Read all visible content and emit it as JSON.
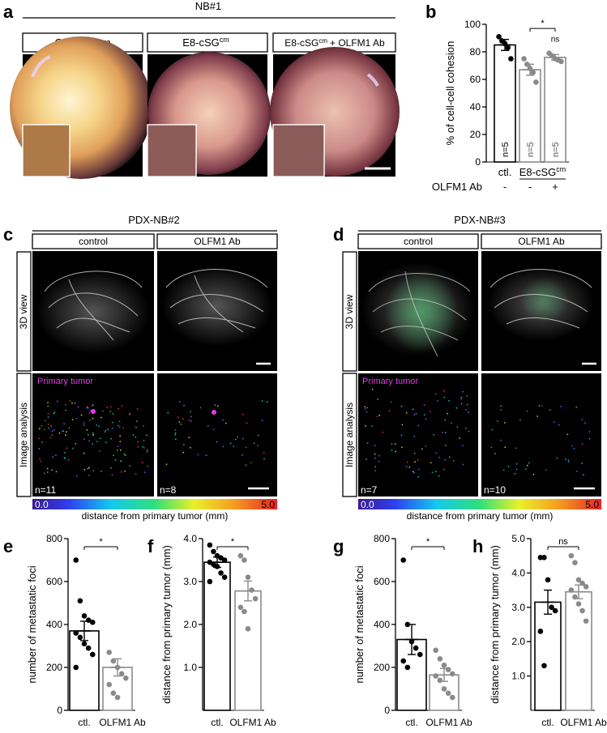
{
  "panel_letters": {
    "a": "a",
    "b": "b",
    "c": "c",
    "d": "d",
    "e": "e",
    "f": "f",
    "g": "g",
    "h": "h"
  },
  "panel_a": {
    "group_label": "NB#1",
    "columns": [
      "Ctl. medium",
      "E8-cSG",
      "E8-cSG"
    ],
    "superscript": "cm",
    "col3_suffix": "+ OLFM1 Ab"
  },
  "panel_c": {
    "title": "PDX-NB#2",
    "cols": [
      "control",
      "OLFM1 Ab"
    ],
    "rows": [
      "3D view",
      "Image analysis"
    ],
    "primary_label": "Primary tumor",
    "n_labels": [
      "n=11",
      "n=8"
    ]
  },
  "panel_d": {
    "title": "PDX-NB#3",
    "cols": [
      "control",
      "OLFM1 Ab"
    ],
    "rows": [
      "3D view",
      "Image analysis"
    ],
    "primary_label": "Primary tumor",
    "n_labels": [
      "n=7",
      "n=10"
    ]
  },
  "colorbar": {
    "min": "0.0",
    "max": "5.0",
    "label": "distance from primary tumor (mm)"
  },
  "colors": {
    "black": "#000000",
    "gray": "#8a8a8a",
    "magenta": "#e23ce2"
  },
  "chart_data": [
    {
      "id": "b",
      "type": "bar",
      "ylabel": "% of cell-cell cohesion",
      "ylim": [
        0,
        100
      ],
      "yticks": [
        "0",
        "20",
        "40",
        "60",
        "80",
        "100"
      ],
      "categories": [
        "ctl.",
        "E8-cSG",
        "E8-cSG"
      ],
      "superscript": "cm",
      "means": [
        85,
        67,
        76
      ],
      "errors": [
        4,
        4,
        2
      ],
      "points": [
        [
          91,
          88,
          86,
          83,
          75
        ],
        [
          75,
          71,
          68,
          65,
          58
        ],
        [
          79,
          77,
          75,
          74,
          73
        ]
      ],
      "n_labels": [
        "n=5",
        "n=5",
        "n=5"
      ],
      "sig_labels": [
        "",
        "",
        "ns"
      ],
      "bracket": {
        "label": "*"
      },
      "olfm_row": {
        "label": "OLFM1 Ab",
        "signs": [
          "-",
          "-",
          "+"
        ]
      }
    },
    {
      "id": "e",
      "type": "bar",
      "ylabel": "number of metastatic foci",
      "ylim": [
        0,
        800
      ],
      "yticks": [
        "0",
        "200",
        "400",
        "600",
        "800"
      ],
      "categories": [
        "ctl.",
        "OLFM1 Ab"
      ],
      "means": [
        370,
        200
      ],
      "errors": [
        45,
        40
      ],
      "points": [
        [
          700,
          510,
          440,
          420,
          410,
          360,
          340,
          310,
          290,
          260,
          200
        ],
        [
          270,
          230,
          200,
          170,
          150,
          120,
          80,
          60
        ]
      ],
      "bracket": {
        "label": "*"
      }
    },
    {
      "id": "f",
      "type": "bar",
      "ylabel": "distance from primary tumor (mm)",
      "ylim": [
        0,
        4.0
      ],
      "yticks": [
        "1.0",
        "2.0",
        "3.0",
        "4.0"
      ],
      "categories": [
        "ctl.",
        "OLFM1 Ab"
      ],
      "means": [
        3.45,
        2.78
      ],
      "errors": [
        0.12,
        0.23
      ],
      "points": [
        [
          3.85,
          3.7,
          3.6,
          3.55,
          3.5,
          3.45,
          3.4,
          3.35,
          3.2,
          3.1,
          3.0
        ],
        [
          3.6,
          3.5,
          3.1,
          2.8,
          2.6,
          2.4,
          2.3,
          1.9
        ]
      ],
      "bracket": {
        "label": "*"
      }
    },
    {
      "id": "g",
      "type": "bar",
      "ylabel": "number of metastatic foci",
      "ylim": [
        0,
        800
      ],
      "yticks": [
        "0",
        "200",
        "400",
        "600",
        "800"
      ],
      "categories": [
        "ctl.",
        "OLFM1 Ab"
      ],
      "means": [
        330,
        165
      ],
      "errors": [
        70,
        30
      ],
      "points": [
        [
          700,
          400,
          320,
          290,
          260,
          230,
          200
        ],
        [
          280,
          240,
          210,
          190,
          170,
          160,
          140,
          100,
          80,
          60
        ]
      ],
      "bracket": {
        "label": "*"
      }
    },
    {
      "id": "h",
      "type": "bar",
      "ylabel": "distance from primary tumor (mm)",
      "ylim": [
        0,
        5.0
      ],
      "yticks": [
        "1.0",
        "2.0",
        "3.0",
        "4.0",
        "5.0"
      ],
      "categories": [
        "ctl.",
        "OLFM1 Ab"
      ],
      "means": [
        3.15,
        3.45
      ],
      "errors": [
        0.35,
        0.2
      ],
      "points": [
        [
          4.45,
          4.45,
          3.8,
          3.0,
          2.9,
          2.3,
          1.3
        ],
        [
          4.5,
          4.3,
          3.8,
          3.7,
          3.6,
          3.5,
          3.3,
          3.1,
          2.9,
          2.6
        ]
      ],
      "bracket": {
        "label": "ns"
      }
    }
  ]
}
